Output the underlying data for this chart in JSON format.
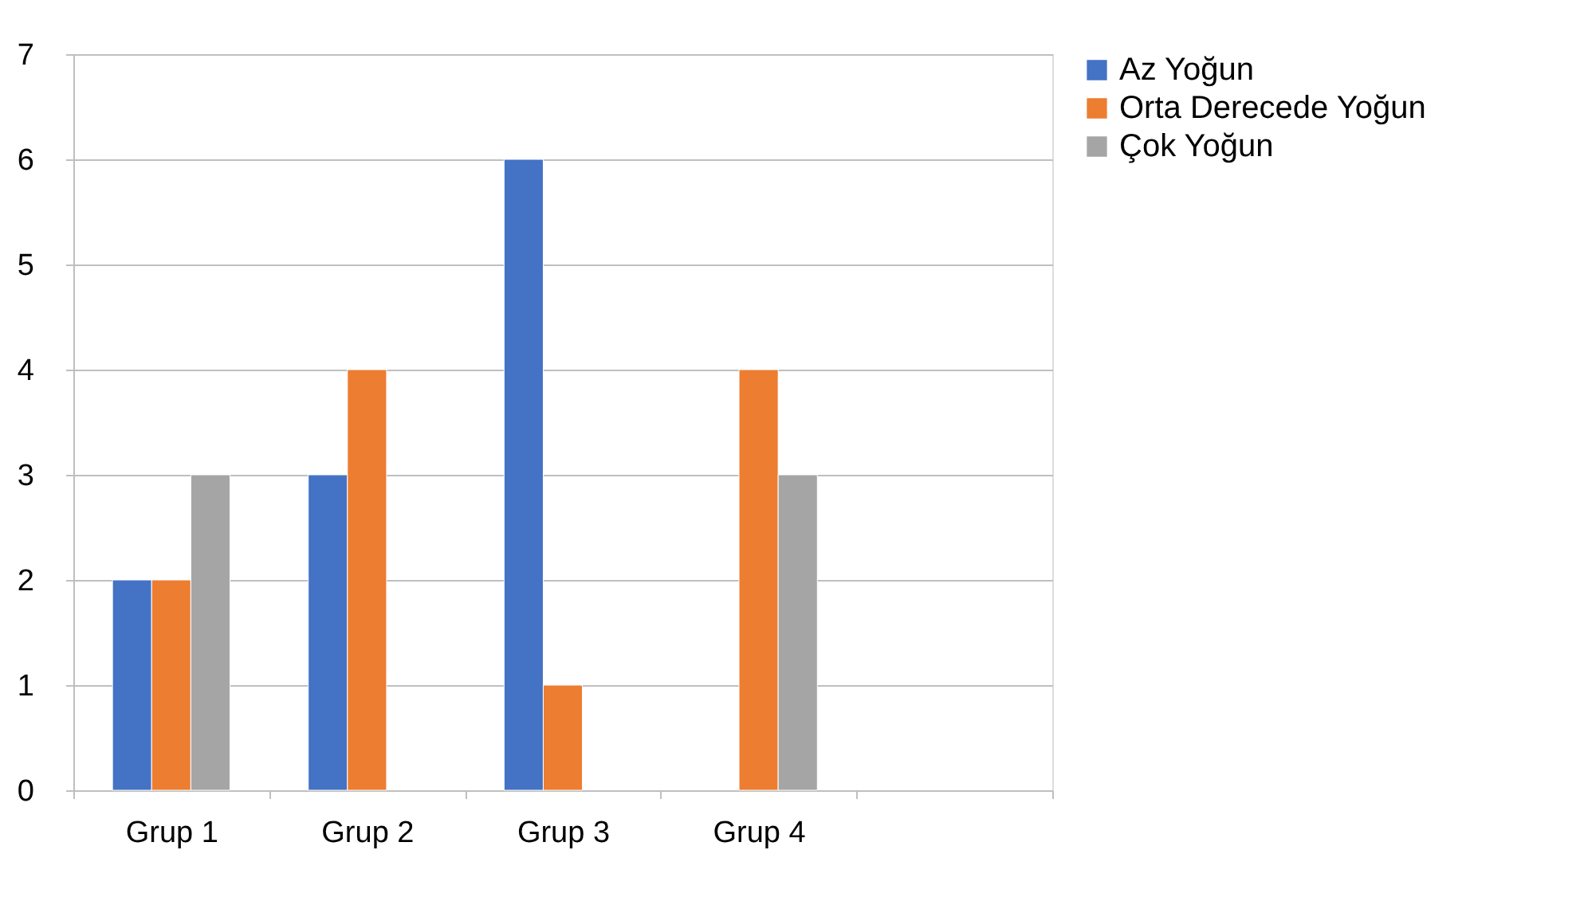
{
  "chart_data": {
    "type": "bar",
    "categories": [
      "Grup 1",
      "Grup 2",
      "Grup 3",
      "Grup 4",
      null
    ],
    "series": [
      {
        "name": "Az Yoğun",
        "color": "#4472c4",
        "values": [
          2,
          3,
          6,
          null,
          null
        ]
      },
      {
        "name": "Orta Derecede Yoğun",
        "color": "#ed7d31",
        "values": [
          2,
          4,
          1,
          4,
          null
        ]
      },
      {
        "name": "Çok Yoğun",
        "color": "#a5a5a5",
        "values": [
          3,
          null,
          null,
          3,
          null
        ]
      }
    ],
    "ylim": [
      0,
      7
    ],
    "yticks": [
      0,
      1,
      2,
      3,
      4,
      5,
      6,
      7
    ],
    "grid": "y",
    "legend": "right"
  }
}
